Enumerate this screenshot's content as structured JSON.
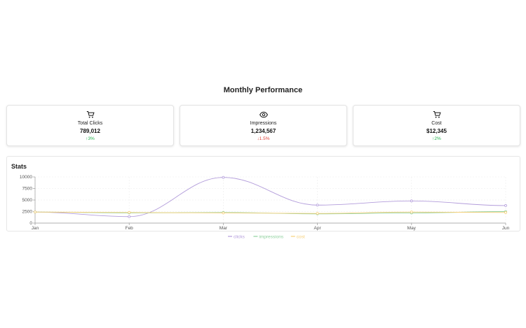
{
  "page_title": "Monthly Performance",
  "cards": [
    {
      "icon": "cart-icon",
      "label": "Total Clicks",
      "value": "789,012",
      "change": "3%",
      "direction": "up"
    },
    {
      "icon": "eye-icon",
      "label": "Impressions",
      "value": "1,234,567",
      "change": "1.5%",
      "direction": "down"
    },
    {
      "icon": "cart-icon",
      "label": "Cost",
      "value": "$12,345",
      "change": "2%",
      "direction": "up"
    }
  ],
  "stats": {
    "title": "Stats"
  },
  "colors": {
    "clicks": "#b39ddb",
    "impressions": "#8fd19e",
    "cost": "#f6d07a",
    "up": "#22b14c",
    "down": "#e0453b"
  },
  "chart_data": {
    "type": "line",
    "x": [
      "Jan",
      "Feb",
      "Mar",
      "Apr",
      "May",
      "Jun"
    ],
    "ylim": [
      0,
      10000
    ],
    "yticks": [
      0,
      2500,
      5000,
      7500,
      10000
    ],
    "grid": true,
    "legend_position": "bottom-center",
    "series": [
      {
        "name": "clicks",
        "values": [
          2400,
          1400,
          9900,
          3900,
          4800,
          3800
        ]
      },
      {
        "name": "impressions",
        "values": [
          2400,
          2200,
          2300,
          2000,
          2200,
          2500
        ]
      },
      {
        "name": "cost",
        "values": [
          2400,
          2300,
          2200,
          2100,
          2400,
          2300
        ]
      }
    ]
  }
}
